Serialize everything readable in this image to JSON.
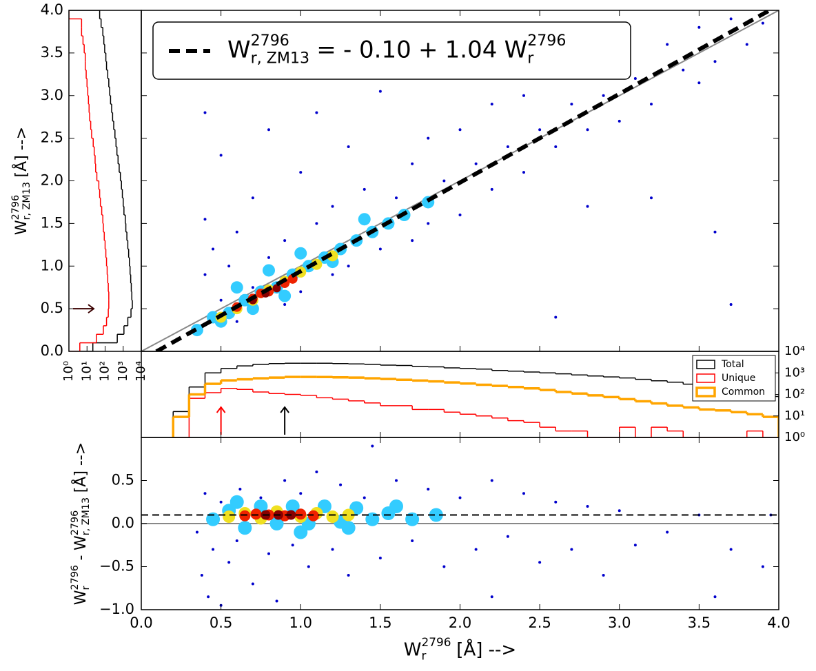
{
  "chart_data": [
    {
      "type": "scatter",
      "xlim": [
        0,
        4
      ],
      "ylim": [
        0,
        4
      ],
      "yticks": [
        {
          "value": 0,
          "label": "0.0"
        },
        0.5,
        {
          "value": 1,
          "label": "1.0"
        },
        1.5,
        {
          "value": 2,
          "label": "2.0"
        },
        2.5,
        {
          "value": 3,
          "label": "3.0"
        },
        3.5,
        {
          "value": 4,
          "label": "4.0"
        }
      ],
      "ylabel": [
        {
          "text": "W",
          "role": "base"
        },
        {
          "text": "2796",
          "role": "sup"
        },
        {
          "text": "r, ZM13",
          "role": "sub"
        },
        {
          "text": "[Å] -->",
          "role": "text"
        }
      ],
      "identity_line": true,
      "fit": {
        "intercept": -0.1,
        "slope": 1.04,
        "color": "#000000"
      },
      "legend": [
        {
          "text": "W",
          "role": "base"
        },
        {
          "text": "2796",
          "role": "sup"
        },
        {
          "text": "r, ZM13",
          "role": "sub"
        },
        {
          "text": "=",
          "role": "text"
        },
        {
          "text": "- 0.10",
          "role": "text"
        },
        {
          "text": "+",
          "role": "text"
        },
        {
          "text": "1.04",
          "role": "text"
        },
        {
          "text": "W",
          "role": "base"
        },
        {
          "text": "2796",
          "role": "sup"
        },
        {
          "text": "r",
          "role": "sub"
        }
      ],
      "series": [
        {
          "color": "#0000cc",
          "size": 2,
          "x": [
            0.35,
            0.4,
            0.4,
            0.45,
            0.5,
            0.5,
            0.55,
            0.6,
            0.6,
            0.7,
            0.7,
            0.8,
            0.8,
            0.9,
            0.9,
            1.0,
            1.0,
            1.1,
            1.1,
            1.2,
            1.2,
            1.3,
            1.3,
            1.4,
            1.5,
            1.5,
            1.6,
            1.7,
            1.7,
            1.8,
            1.8,
            1.9,
            2.0,
            2.0,
            2.1,
            2.2,
            2.2,
            2.3,
            2.4,
            2.4,
            2.5,
            2.6,
            2.6,
            2.7,
            2.8,
            2.8,
            2.9,
            3.0,
            3.0,
            3.1,
            3.2,
            3.3,
            3.4,
            3.5,
            3.6,
            3.7,
            3.8,
            3.2,
            3.6,
            2.6,
            3.7,
            3.5,
            2.1,
            1.2,
            0.4,
            2.8,
            3.9
          ],
          "y": [
            0.3,
            1.55,
            0.9,
            1.2,
            2.3,
            0.6,
            1.0,
            1.4,
            0.35,
            1.8,
            0.75,
            2.6,
            1.1,
            0.55,
            1.3,
            2.1,
            0.7,
            1.5,
            2.8,
            0.9,
            1.7,
            2.4,
            1.0,
            1.9,
            1.2,
            3.05,
            1.8,
            1.3,
            2.2,
            2.5,
            1.5,
            2.0,
            1.6,
            2.6,
            2.2,
            1.9,
            2.9,
            2.4,
            2.1,
            3.0,
            2.6,
            2.4,
            3.3,
            2.9,
            2.6,
            3.6,
            3.0,
            2.7,
            3.5,
            3.2,
            2.9,
            3.6,
            3.3,
            3.8,
            3.4,
            3.9,
            3.6,
            1.8,
            1.4,
            0.4,
            0.55,
            3.15,
            3.5,
            3.7,
            2.8,
            1.7,
            3.85
          ]
        },
        {
          "color": "#33ccff",
          "size": 9,
          "x": [
            0.35,
            0.45,
            0.55,
            0.65,
            0.75,
            0.85,
            0.95,
            1.05,
            1.15,
            1.25,
            1.35,
            1.45,
            1.55,
            1.65,
            1.8,
            0.6,
            0.8,
            1.0,
            1.2,
            1.4,
            0.5,
            0.7,
            0.9
          ],
          "y": [
            0.25,
            0.4,
            0.45,
            0.6,
            0.7,
            0.75,
            0.9,
            1.0,
            1.1,
            1.2,
            1.3,
            1.4,
            1.5,
            1.6,
            1.75,
            0.75,
            0.95,
            1.15,
            1.05,
            1.55,
            0.35,
            0.5,
            0.65
          ]
        },
        {
          "color": "#f0e020",
          "size": 8,
          "x": [
            0.5,
            0.6,
            0.7,
            0.8,
            0.9,
            1.0,
            1.1,
            1.2
          ],
          "y": [
            0.4,
            0.5,
            0.6,
            0.72,
            0.82,
            0.93,
            1.02,
            1.12
          ]
        },
        {
          "color": "#ee2200",
          "size": 7,
          "x": [
            0.6,
            0.7,
            0.75,
            0.8,
            0.9,
            0.95
          ],
          "y": [
            0.52,
            0.62,
            0.68,
            0.7,
            0.8,
            0.85
          ]
        },
        {
          "color": "#880000",
          "size": 6,
          "x": [
            0.7,
            0.78,
            0.85
          ],
          "y": [
            0.6,
            0.68,
            0.74
          ]
        }
      ]
    },
    {
      "type": "histogram",
      "orientation": "horizontal",
      "xscale": "log",
      "xlim": [
        1,
        10000
      ],
      "xticks": [
        {
          "value": 1,
          "label": "10⁰"
        },
        {
          "value": 10,
          "label": "10¹"
        },
        {
          "value": 100,
          "label": "10²"
        },
        {
          "value": 1000,
          "label": "10³"
        },
        {
          "value": 10000,
          "label": "10⁴"
        }
      ],
      "bins": [
        0.0,
        0.1,
        0.2,
        0.3,
        0.4,
        0.5,
        0.6,
        0.7,
        0.8,
        0.9,
        1.0,
        1.1,
        1.2,
        1.3,
        1.4,
        1.5,
        1.6,
        1.7,
        1.8,
        1.9,
        2.0,
        2.1,
        2.2,
        2.3,
        2.4,
        2.5,
        2.6,
        2.7,
        2.8,
        2.9,
        3.0,
        3.1,
        3.2,
        3.3,
        3.4,
        3.5,
        3.6,
        3.7,
        3.8,
        3.9,
        4.0
      ],
      "series": [
        {
          "color": "#000000",
          "width": 1.5,
          "values": [
            21,
            470,
            1100,
            1800,
            2700,
            3200,
            3000,
            2800,
            2600,
            2400,
            2200,
            2000,
            1800,
            1600,
            1400,
            1300,
            1100,
            1000,
            900,
            800,
            700,
            600,
            520,
            450,
            400,
            350,
            300,
            260,
            230,
            200,
            180,
            160,
            140,
            120,
            110,
            95,
            85,
            75,
            60,
            50
          ]
        },
        {
          "color": "#ff0000",
          "width": 1.5,
          "values": [
            4,
            33,
            80,
            120,
            150,
            160,
            160,
            150,
            140,
            130,
            120,
            110,
            100,
            90,
            80,
            75,
            65,
            55,
            50,
            45,
            35,
            30,
            28,
            25,
            22,
            18,
            16,
            14,
            13,
            12,
            11,
            10,
            9,
            8,
            8,
            7,
            6,
            5,
            5,
            1
          ]
        }
      ],
      "arrows": [
        {
          "y": 0.5,
          "color": "#3a0000"
        }
      ]
    },
    {
      "type": "histogram",
      "orientation": "vertical",
      "yscale": "log",
      "xlim": [
        0,
        4
      ],
      "ylim": [
        1,
        10000
      ],
      "yticks": [
        {
          "value": 1,
          "label": "10⁰"
        },
        {
          "value": 10,
          "label": "10¹"
        },
        {
          "value": 100,
          "label": "10²"
        },
        {
          "value": 1000,
          "label": "10³"
        },
        {
          "value": 10000,
          "label": "10⁴"
        }
      ],
      "legend_position": "upper right",
      "bins": [
        0.2,
        0.3,
        0.4,
        0.5,
        0.6,
        0.7,
        0.8,
        0.9,
        1.0,
        1.1,
        1.2,
        1.3,
        1.4,
        1.5,
        1.6,
        1.7,
        1.8,
        1.9,
        2.0,
        2.1,
        2.2,
        2.3,
        2.4,
        2.5,
        2.6,
        2.7,
        2.8,
        2.9,
        3.0,
        3.1,
        3.2,
        3.3,
        3.4,
        3.5,
        3.6,
        3.7,
        3.8,
        3.9,
        4.0
      ],
      "series": [
        {
          "name": "Total",
          "color": "#000000",
          "width": 1.5,
          "values": [
            16,
            220,
            1000,
            1600,
            2100,
            2500,
            2700,
            2800,
            2800,
            2800,
            2700,
            2600,
            2500,
            2300,
            2200,
            2000,
            1900,
            1700,
            1600,
            1500,
            1300,
            1200,
            1100,
            1000,
            900,
            800,
            720,
            650,
            580,
            500,
            430,
            370,
            300,
            250,
            200,
            160,
            120,
            80
          ]
        },
        {
          "name": "Unique",
          "color": "#ff0000",
          "width": 1.5,
          "values": [
            1,
            66,
            120,
            190,
            170,
            130,
            110,
            100,
            90,
            70,
            60,
            50,
            40,
            30,
            30,
            20,
            20,
            15,
            12,
            10,
            8,
            6,
            5,
            3,
            2,
            2,
            1,
            1,
            3,
            1,
            3,
            2,
            1,
            1,
            1,
            1,
            2,
            1
          ]
        },
        {
          "name": "Common",
          "color": "#ffa500",
          "width": 3.5,
          "values": [
            9,
            100,
            310,
            450,
            500,
            560,
            600,
            650,
            650,
            640,
            620,
            600,
            560,
            520,
            480,
            440,
            400,
            360,
            320,
            280,
            250,
            220,
            190,
            160,
            130,
            110,
            90,
            75,
            60,
            48,
            38,
            30,
            25,
            20,
            18,
            15,
            12,
            9
          ]
        }
      ],
      "arrows": [
        {
          "x": 0.5,
          "color": "#ff0000"
        },
        {
          "x": 0.9,
          "color": "#000000"
        }
      ]
    },
    {
      "type": "scatter",
      "xlim": [
        0,
        4
      ],
      "ylim": [
        -1,
        1
      ],
      "xticks": [
        {
          "value": 0,
          "label": "0.0"
        },
        0.5,
        {
          "value": 1,
          "label": "1.0"
        },
        1.5,
        {
          "value": 2,
          "label": "2.0"
        },
        2.5,
        {
          "value": 3,
          "label": "3.0"
        },
        3.5,
        {
          "value": 4,
          "label": "4.0"
        }
      ],
      "yticks": [
        {
          "value": -1,
          "label": "−1.0"
        },
        {
          "value": -0.5,
          "label": "−0.5"
        },
        {
          "value": 0,
          "label": "0.0"
        },
        0.5
      ],
      "xlabel": [
        {
          "text": "W",
          "role": "base"
        },
        {
          "text": "2796",
          "role": "sup"
        },
        {
          "text": "r",
          "role": "sub"
        },
        {
          "text": "[Å] -->",
          "role": "text"
        }
      ],
      "ylabel": [
        {
          "text": "W",
          "role": "base"
        },
        {
          "text": "2796",
          "role": "sup"
        },
        {
          "text": "r",
          "role": "sub"
        },
        {
          "text": "-",
          "role": "text"
        },
        {
          "text": "W",
          "role": "base"
        },
        {
          "text": "2796",
          "role": "sup"
        },
        {
          "text": "r, ZM13",
          "role": "sub"
        },
        {
          "text": "[Å] -->",
          "role": "text"
        }
      ],
      "zero_line": true,
      "hline": 0.1,
      "series": [
        {
          "color": "#0000cc",
          "size": 2,
          "x": [
            0.35,
            0.38,
            0.4,
            0.42,
            0.45,
            0.5,
            0.55,
            0.6,
            0.62,
            0.7,
            0.75,
            0.8,
            0.85,
            0.9,
            0.95,
            1.0,
            1.05,
            1.1,
            1.2,
            1.25,
            1.3,
            1.4,
            1.45,
            1.5,
            1.6,
            1.7,
            1.8,
            1.9,
            2.0,
            2.1,
            2.2,
            2.3,
            2.4,
            2.5,
            2.6,
            2.7,
            2.8,
            2.9,
            3.0,
            3.1,
            3.3,
            3.5,
            3.7,
            3.9,
            3.95,
            3.6,
            2.2,
            0.5
          ],
          "y": [
            -0.1,
            -0.6,
            0.35,
            -0.85,
            -0.3,
            0.25,
            -0.45,
            -0.2,
            0.4,
            -0.7,
            0.3,
            -0.35,
            -0.9,
            0.5,
            -0.25,
            0.35,
            -0.5,
            0.6,
            -0.3,
            0.45,
            -0.6,
            0.3,
            0.9,
            -0.4,
            0.5,
            -0.2,
            0.4,
            -0.5,
            0.3,
            -0.3,
            0.5,
            -0.15,
            0.35,
            -0.45,
            0.25,
            -0.3,
            0.2,
            -0.6,
            0.15,
            -0.25,
            -0.1,
            0.1,
            -0.3,
            -0.5,
            0.1,
            -0.85,
            -0.85,
            -0.95
          ]
        },
        {
          "color": "#33ccff",
          "size": 10,
          "x": [
            0.45,
            0.55,
            0.65,
            0.75,
            0.85,
            0.95,
            1.05,
            1.15,
            1.25,
            1.35,
            1.45,
            1.55,
            1.7,
            1.85,
            0.6,
            1.0,
            1.3,
            1.6
          ],
          "y": [
            0.05,
            0.15,
            -0.05,
            0.2,
            0.0,
            0.2,
            0.0,
            0.2,
            0.02,
            0.18,
            0.05,
            0.12,
            0.05,
            0.1,
            0.25,
            -0.1,
            -0.05,
            0.2
          ]
        },
        {
          "color": "#f0e020",
          "size": 9,
          "x": [
            0.55,
            0.65,
            0.75,
            0.85,
            1.0,
            1.1,
            1.2,
            1.3
          ],
          "y": [
            0.08,
            0.12,
            0.06,
            0.14,
            0.08,
            0.12,
            0.08,
            0.1
          ]
        },
        {
          "color": "#ee2200",
          "size": 8,
          "x": [
            0.65,
            0.72,
            0.8,
            0.9,
            1.0,
            1.08
          ],
          "y": [
            0.09,
            0.11,
            0.1,
            0.09,
            0.11,
            0.09
          ]
        },
        {
          "color": "#880000",
          "size": 7,
          "x": [
            0.78,
            0.86,
            0.94
          ],
          "y": [
            0.1,
            0.1,
            0.1
          ]
        }
      ]
    }
  ]
}
